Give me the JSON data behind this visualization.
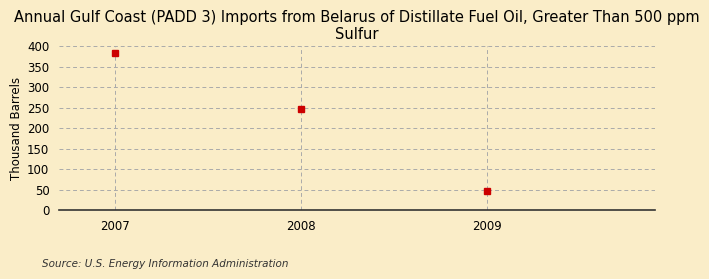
{
  "title": "Annual Gulf Coast (PADD 3) Imports from Belarus of Distillate Fuel Oil, Greater Than 500 ppm\nSulfur",
  "ylabel": "Thousand Barrels",
  "source": "Source: U.S. Energy Information Administration",
  "x_values": [
    2007,
    2008,
    2009
  ],
  "y_values": [
    383,
    247,
    46
  ],
  "xlim": [
    2006.7,
    2009.9
  ],
  "ylim": [
    0,
    400
  ],
  "yticks": [
    0,
    50,
    100,
    150,
    200,
    250,
    300,
    350,
    400
  ],
  "xticks": [
    2007,
    2008,
    2009
  ],
  "marker_color": "#cc0000",
  "background_color": "#faedc8",
  "grid_color": "#aaaaaa",
  "title_fontsize": 10.5,
  "label_fontsize": 8.5,
  "tick_fontsize": 8.5,
  "source_fontsize": 7.5
}
